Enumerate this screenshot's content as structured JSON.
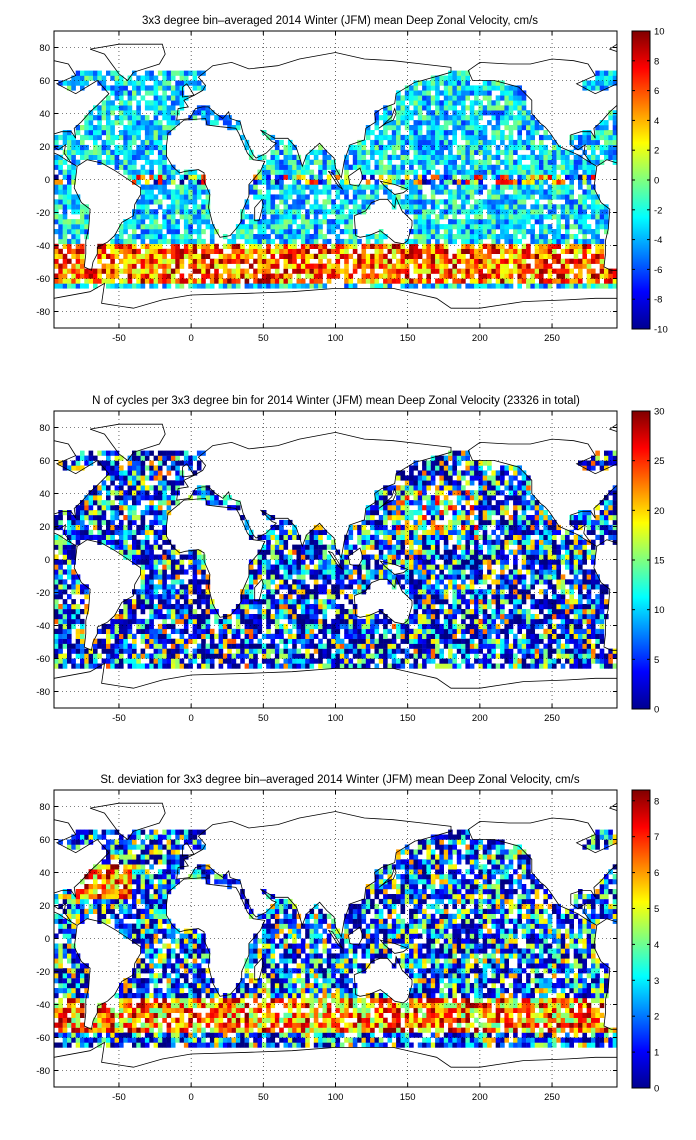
{
  "chart_data": [
    {
      "type": "heatmap",
      "title": "3x3 degree bin–averaged 2014 Winter (JFM) mean Deep Zonal Velocity, cm/s",
      "x_ticks": [
        -50,
        0,
        50,
        100,
        150,
        200,
        250
      ],
      "y_ticks": [
        80,
        60,
        40,
        20,
        0,
        -20,
        -40,
        -60,
        -80
      ],
      "xlim": [
        -95,
        295
      ],
      "ylim": [
        -90,
        90
      ],
      "bin_size_deg": 3,
      "colorbar": {
        "colormap": "jet",
        "range": [
          -10,
          10
        ],
        "ticks": [
          10,
          8,
          6,
          4,
          2,
          0,
          -2,
          -4,
          -6,
          -8,
          -10
        ]
      },
      "grid": true
    },
    {
      "type": "heatmap",
      "title": "N of cycles per 3x3 degree bin for 2014 Winter (JFM) mean Deep Zonal Velocity (23326 in total)",
      "x_ticks": [
        -50,
        0,
        50,
        100,
        150,
        200,
        250
      ],
      "y_ticks": [
        80,
        60,
        40,
        20,
        0,
        -20,
        -40,
        -60,
        -80
      ],
      "xlim": [
        -95,
        295
      ],
      "ylim": [
        -90,
        90
      ],
      "bin_size_deg": 3,
      "total_cycles": 23326,
      "colorbar": {
        "colormap": "jet",
        "range": [
          0,
          30
        ],
        "ticks": [
          30,
          25,
          20,
          15,
          10,
          5,
          0
        ]
      },
      "grid": true
    },
    {
      "type": "heatmap",
      "title": "St. deviation for 3x3 degree bin–averaged 2014 Winter (JFM) mean Deep Zonal Velocity, cm/s",
      "x_ticks": [
        -50,
        0,
        50,
        100,
        150,
        200,
        250
      ],
      "y_ticks": [
        80,
        60,
        40,
        20,
        0,
        -20,
        -40,
        -60,
        -80
      ],
      "xlim": [
        -95,
        295
      ],
      "ylim": [
        -90,
        90
      ],
      "bin_size_deg": 3,
      "colorbar": {
        "colormap": "jet",
        "range": [
          0,
          8.3
        ],
        "ticks": [
          8,
          7,
          6,
          5,
          4,
          3,
          2,
          1,
          0
        ]
      },
      "grid": true
    }
  ]
}
